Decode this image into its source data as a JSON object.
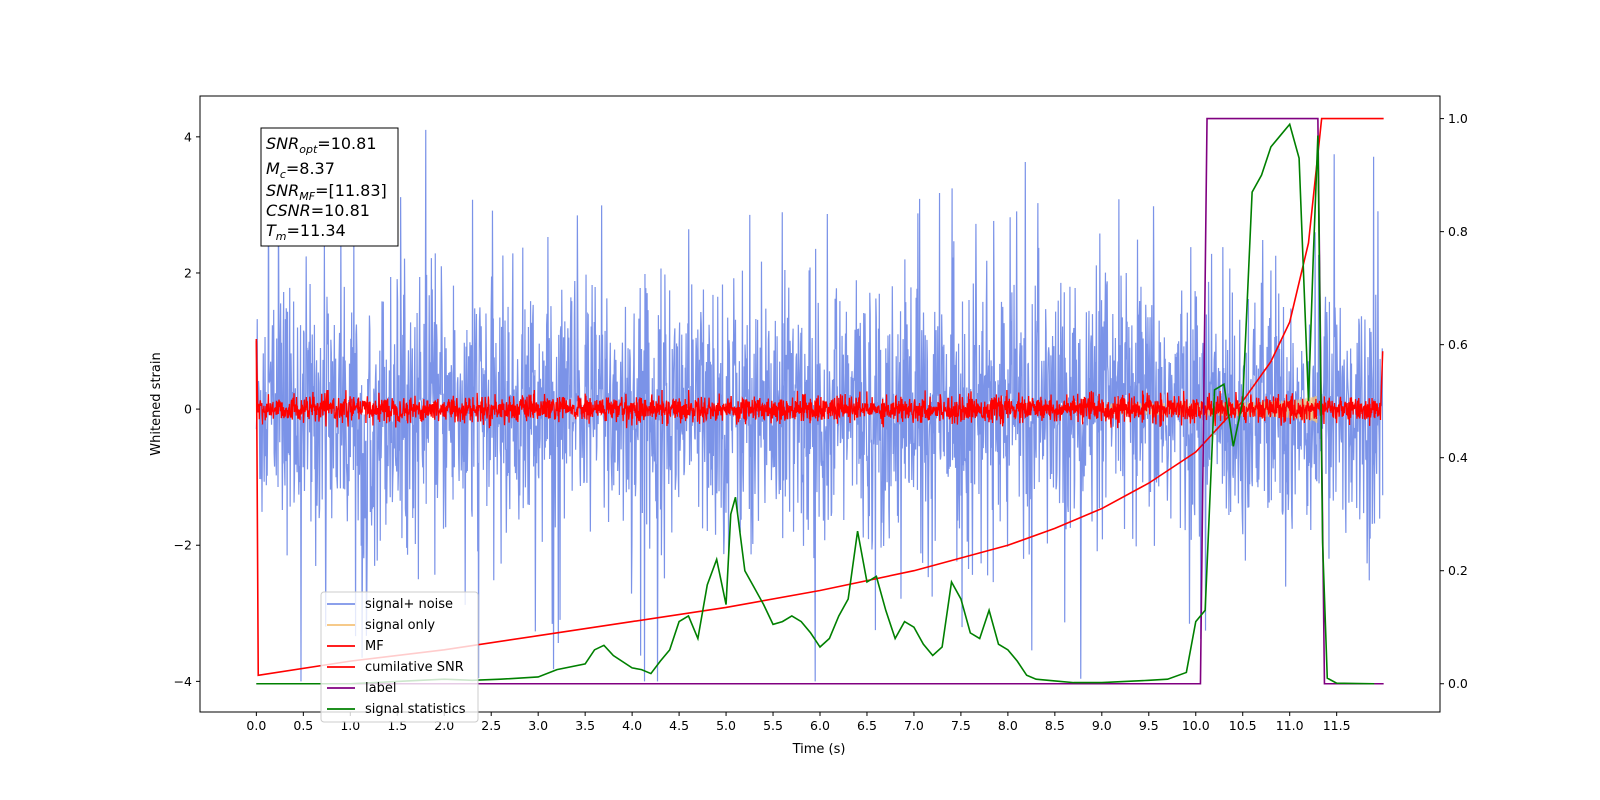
{
  "chart_data": {
    "type": "line",
    "xlabel": "Time (s)",
    "ylabel": "Whitened strain",
    "xticks": [
      "0.0",
      "0.5",
      "1.0",
      "1.5",
      "2.0",
      "2.5",
      "3.0",
      "3.5",
      "4.0",
      "4.5",
      "5.0",
      "5.5",
      "6.0",
      "6.5",
      "7.0",
      "7.5",
      "8.0",
      "8.5",
      "9.0",
      "9.5",
      "10.0",
      "10.5",
      "11.0",
      "11.5"
    ],
    "xlim": [
      -0.6,
      12.6
    ],
    "ylim_left": [
      -4.45,
      4.6
    ],
    "ylim_right": [
      -0.05,
      1.04
    ],
    "yticks_left": [
      -4,
      -2,
      0,
      2,
      4
    ],
    "yticks_right": [
      0.0,
      0.2,
      0.4,
      0.6,
      0.8,
      1.0
    ],
    "legend_location": "lower-left",
    "annotation_box": {
      "lines": [
        {
          "main": "SNR",
          "sub": "opt",
          "rest": "=10.81"
        },
        {
          "main": "M",
          "sub": "c",
          "rest": "=8.37"
        },
        {
          "main": "SNR",
          "sub": "MF",
          "rest": "=[11.83]"
        },
        {
          "main": "CSNR",
          "sub": "",
          "rest": "=10.81"
        },
        {
          "main": "T",
          "sub": "m",
          "rest": "=11.34"
        }
      ]
    },
    "series": [
      {
        "name": "signal+ noise",
        "color": "#7b93e8",
        "axis": "left",
        "kind": "noise",
        "envelope": 1.6,
        "spike_max": 4.15
      },
      {
        "name": "signal only",
        "color": "#f5c27a",
        "axis": "left",
        "kind": "chirp",
        "t_merger": 11.34
      },
      {
        "name": "MF",
        "color": "#ff0000",
        "axis": "left",
        "kind": "mf_noise",
        "amplitude": 0.12
      },
      {
        "name": "cumilative SNR",
        "color": "#ff0000",
        "axis": "right",
        "x": [
          0.0,
          0.02,
          1.0,
          2.0,
          3.0,
          4.0,
          5.0,
          6.0,
          7.0,
          8.0,
          8.5,
          9.0,
          9.5,
          10.0,
          10.5,
          10.8,
          11.0,
          11.2,
          11.34,
          12.0
        ],
        "values": [
          0.61,
          0.015,
          0.04,
          0.06,
          0.085,
          0.11,
          0.135,
          0.165,
          0.2,
          0.245,
          0.275,
          0.31,
          0.355,
          0.41,
          0.5,
          0.57,
          0.64,
          0.78,
          1.0,
          1.0
        ]
      },
      {
        "name": "label",
        "color": "#800080",
        "axis": "right",
        "x": [
          0.0,
          10.05,
          10.12,
          11.3,
          11.37,
          12.0
        ],
        "values": [
          0.0,
          0.0,
          1.0,
          1.0,
          0.0,
          0.0
        ]
      },
      {
        "name": "signal statistics",
        "color": "#008000",
        "axis": "right",
        "x": [
          0.0,
          0.5,
          1.0,
          1.5,
          2.0,
          2.3,
          2.6,
          3.0,
          3.2,
          3.5,
          3.6,
          3.7,
          3.8,
          4.0,
          4.1,
          4.2,
          4.3,
          4.4,
          4.5,
          4.6,
          4.7,
          4.8,
          4.9,
          5.0,
          5.05,
          5.1,
          5.2,
          5.3,
          5.4,
          5.5,
          5.6,
          5.7,
          5.8,
          5.9,
          6.0,
          6.1,
          6.2,
          6.3,
          6.4,
          6.5,
          6.6,
          6.7,
          6.8,
          6.9,
          7.0,
          7.1,
          7.2,
          7.3,
          7.4,
          7.5,
          7.6,
          7.7,
          7.8,
          7.9,
          8.0,
          8.1,
          8.2,
          8.3,
          8.5,
          8.7,
          9.0,
          9.5,
          9.7,
          9.9,
          10.0,
          10.1,
          10.2,
          10.3,
          10.4,
          10.5,
          10.6,
          10.7,
          10.8,
          10.9,
          11.0,
          11.1,
          11.2,
          11.25,
          11.3,
          11.35,
          11.4,
          11.5,
          11.9
        ],
        "values": [
          0.0,
          0.0,
          0.0,
          0.004,
          0.008,
          0.006,
          0.008,
          0.012,
          0.025,
          0.035,
          0.06,
          0.068,
          0.05,
          0.028,
          0.025,
          0.018,
          0.04,
          0.06,
          0.11,
          0.12,
          0.08,
          0.175,
          0.22,
          0.14,
          0.3,
          0.33,
          0.2,
          0.17,
          0.14,
          0.105,
          0.11,
          0.12,
          0.11,
          0.09,
          0.065,
          0.08,
          0.12,
          0.15,
          0.27,
          0.18,
          0.19,
          0.13,
          0.08,
          0.11,
          0.1,
          0.07,
          0.05,
          0.065,
          0.18,
          0.15,
          0.09,
          0.08,
          0.13,
          0.07,
          0.06,
          0.04,
          0.015,
          0.008,
          0.005,
          0.002,
          0.002,
          0.006,
          0.008,
          0.02,
          0.11,
          0.13,
          0.52,
          0.53,
          0.42,
          0.5,
          0.87,
          0.9,
          0.95,
          0.97,
          0.99,
          0.93,
          0.5,
          0.75,
          0.97,
          0.25,
          0.01,
          0.001,
          0.0
        ]
      }
    ]
  }
}
